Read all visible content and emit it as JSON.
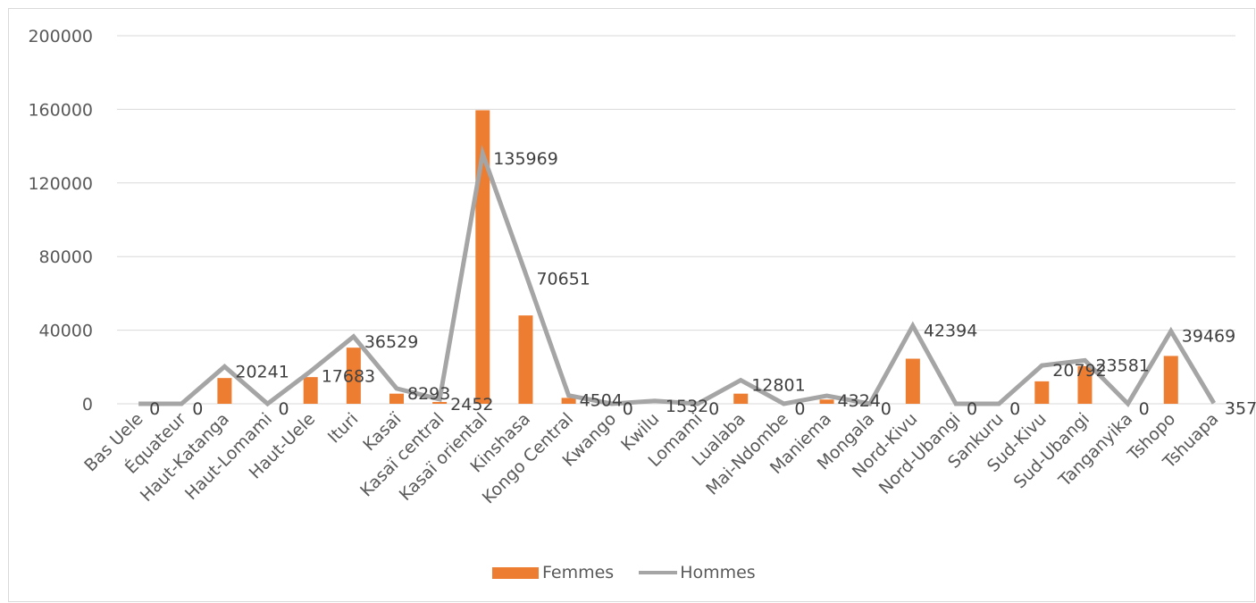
{
  "chart_data": {
    "type": "bar",
    "title": "",
    "xlabel": "",
    "ylabel": "",
    "ylim": [
      0,
      200000
    ],
    "yticks": [
      "0",
      "40000",
      "80000",
      "120000",
      "160000",
      "200000"
    ],
    "grid": true,
    "legend_position": "bottom",
    "categories": [
      "Bas Uele",
      "Équateur",
      "Haut-Katanga",
      "Haut-Lomami",
      "Haut-Uele",
      "Ituri",
      "Kasaï",
      "Kasaï central",
      "Kasaï oriental",
      "Kinshasa",
      "Kongo Central",
      "Kwango",
      "Kwilu",
      "Lomami",
      "Lualaba",
      "Mai-Ndombe",
      "Maniema",
      "Mongala",
      "Nord-Kivu",
      "Nord-Ubangi",
      "Sankuru",
      "Sud-Kivu",
      "Sud-Ubangi",
      "Tanganyika",
      "Tshopo",
      "Tshuapa"
    ],
    "series": [
      {
        "name": "Femmes",
        "type": "bar",
        "color": "#ed7d31",
        "values": [
          0,
          0,
          14000,
          0,
          14500,
          30500,
          5500,
          1000,
          159500,
          48000,
          3200,
          0,
          0,
          0,
          5500,
          0,
          2300,
          0,
          24500,
          0,
          0,
          12200,
          20500,
          0,
          26000,
          0
        ]
      },
      {
        "name": "Hommes",
        "type": "line",
        "color": "#a5a5a5",
        "values": [
          0,
          0,
          20241,
          0,
          17683,
          36529,
          8293,
          2452,
          135969,
          70651,
          4504,
          0,
          1532,
          0,
          12801,
          0,
          4324,
          0,
          42394,
          0,
          0,
          20792,
          23581,
          0,
          39469,
          357
        ]
      }
    ],
    "data_labels": [
      "0",
      "0",
      "20241",
      "0",
      "17683",
      "36529",
      "8293",
      "2452",
      "135969",
      "70651",
      "4504",
      "0",
      "1532",
      "0",
      "12801",
      "0",
      "4324",
      "0",
      "42394",
      "0",
      "0",
      "20792",
      "23581",
      "0",
      "39469",
      "357"
    ]
  }
}
